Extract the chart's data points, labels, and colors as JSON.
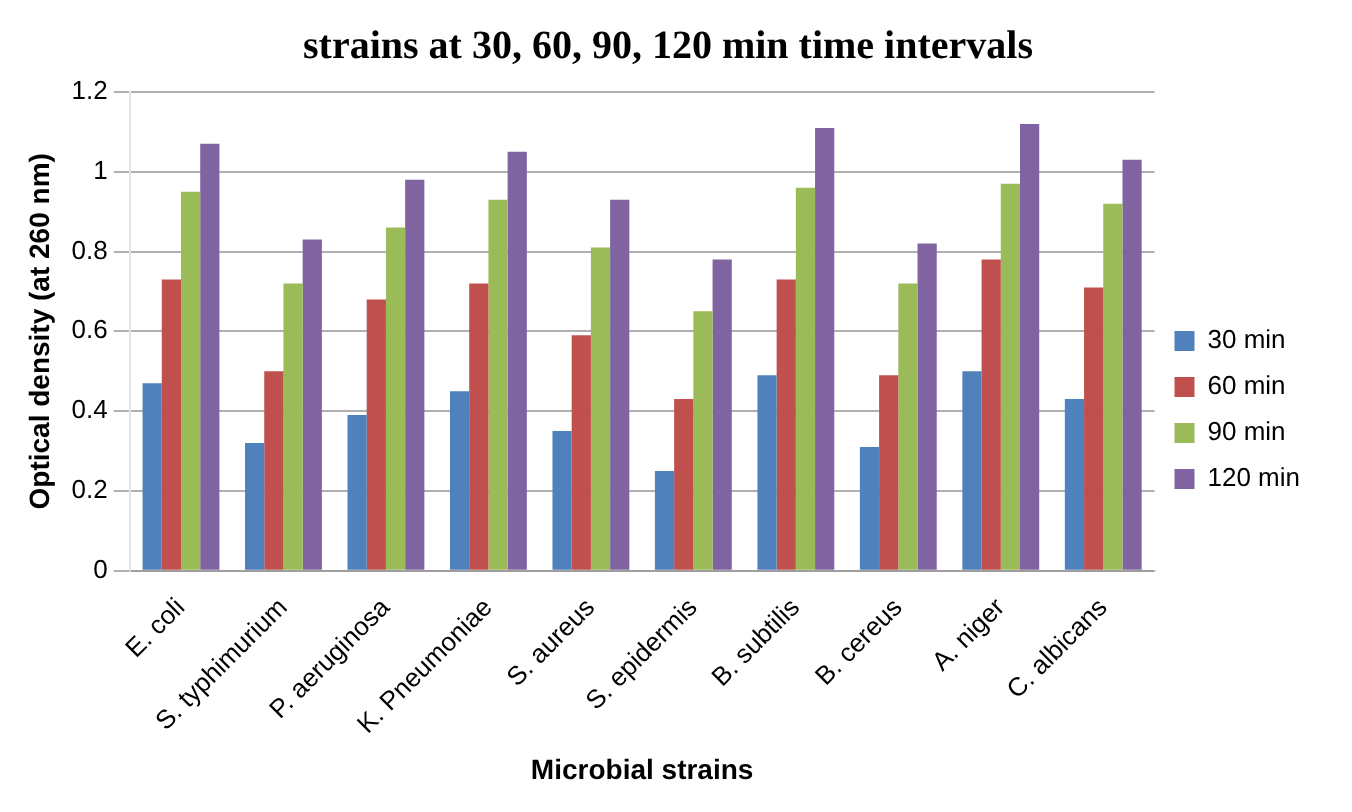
{
  "chart_data": {
    "type": "bar",
    "title": "strains at 30, 60, 90, 120 min time intervals",
    "xlabel": "Microbial strains",
    "ylabel": "Optical density (at 260 nm)",
    "categories": [
      "E. coli",
      "S. typhimurium",
      "P. aeruginosa",
      "K. Pneumoniae",
      "S. aureus",
      "S. epidermis",
      "B. subtilis",
      "B. cereus",
      "A. niger",
      "C. albicans"
    ],
    "series": [
      {
        "name": "30 min",
        "color": "#4f81bd",
        "values": [
          0.47,
          0.32,
          0.39,
          0.45,
          0.35,
          0.25,
          0.49,
          0.31,
          0.5,
          0.43
        ]
      },
      {
        "name": "60 min",
        "color": "#c0504d",
        "values": [
          0.73,
          0.5,
          0.68,
          0.72,
          0.59,
          0.43,
          0.73,
          0.49,
          0.78,
          0.71
        ]
      },
      {
        "name": "90 min",
        "color": "#9bbb59",
        "values": [
          0.95,
          0.72,
          0.86,
          0.93,
          0.81,
          0.65,
          0.96,
          0.72,
          0.97,
          0.92
        ]
      },
      {
        "name": "120 min",
        "color": "#8064a2",
        "values": [
          1.07,
          0.83,
          0.98,
          1.05,
          0.93,
          0.78,
          1.11,
          0.82,
          1.12,
          1.03
        ]
      }
    ],
    "ylim": [
      0,
      1.2
    ],
    "yticks": [
      0,
      0.2,
      0.4,
      0.6,
      0.8,
      1,
      1.2
    ],
    "grid": "y",
    "legend": "right"
  }
}
